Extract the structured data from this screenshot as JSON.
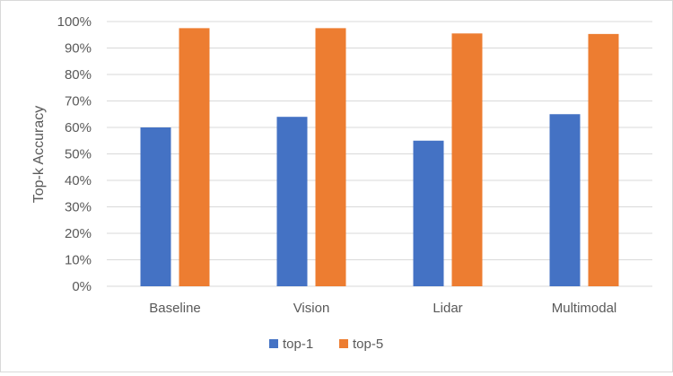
{
  "chart_data": {
    "type": "bar",
    "categories": [
      "Baseline",
      "Vision",
      "Lidar",
      "Multimodal"
    ],
    "series": [
      {
        "name": "top-1",
        "values": [
          0.6,
          0.64,
          0.55,
          0.65
        ],
        "color": "#4472C4"
      },
      {
        "name": "top-5",
        "values": [
          0.975,
          0.975,
          0.955,
          0.953
        ],
        "color": "#ED7D31"
      }
    ],
    "ylabel": "Top-k Accuracy",
    "xlabel": "",
    "ylim": [
      0,
      1
    ],
    "yticks": [
      "0%",
      "10%",
      "20%",
      "30%",
      "40%",
      "50%",
      "60%",
      "70%",
      "80%",
      "90%",
      "100%"
    ],
    "grid": true,
    "legend_position": "bottom"
  }
}
